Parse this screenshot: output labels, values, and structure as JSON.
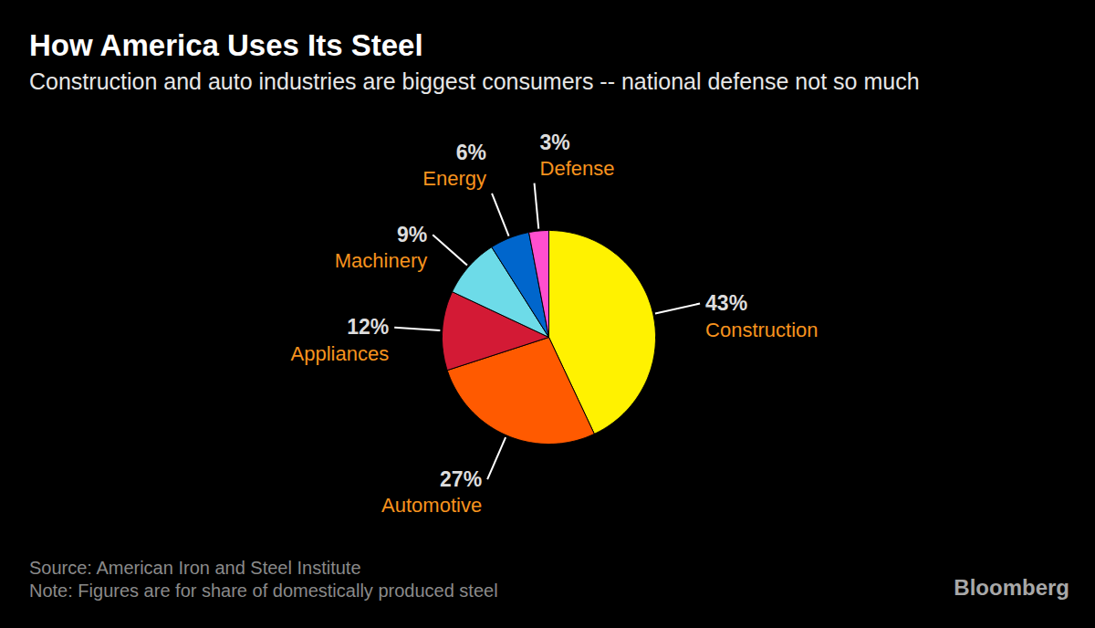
{
  "chart_data": {
    "type": "pie",
    "title": "How America Uses Its Steel",
    "subtitle": "Construction and auto industries are biggest consumers -- national defense not so much",
    "categories": [
      "Construction",
      "Automotive",
      "Appliances",
      "Machinery",
      "Energy",
      "Defense"
    ],
    "values": [
      43,
      27,
      12,
      9,
      6,
      3
    ],
    "value_labels": [
      "43%",
      "27%",
      "12%",
      "9%",
      "6%",
      "3%"
    ],
    "colors": [
      "#fff200",
      "#ff5a00",
      "#d31a35",
      "#6ddbe8",
      "#0066cc",
      "#ff4fcf"
    ],
    "data_labels": true,
    "source": "Source: American Iron and Steel Institute",
    "note": "Note: Figures are for share of domestically produced steel",
    "credit": "Bloomberg"
  }
}
